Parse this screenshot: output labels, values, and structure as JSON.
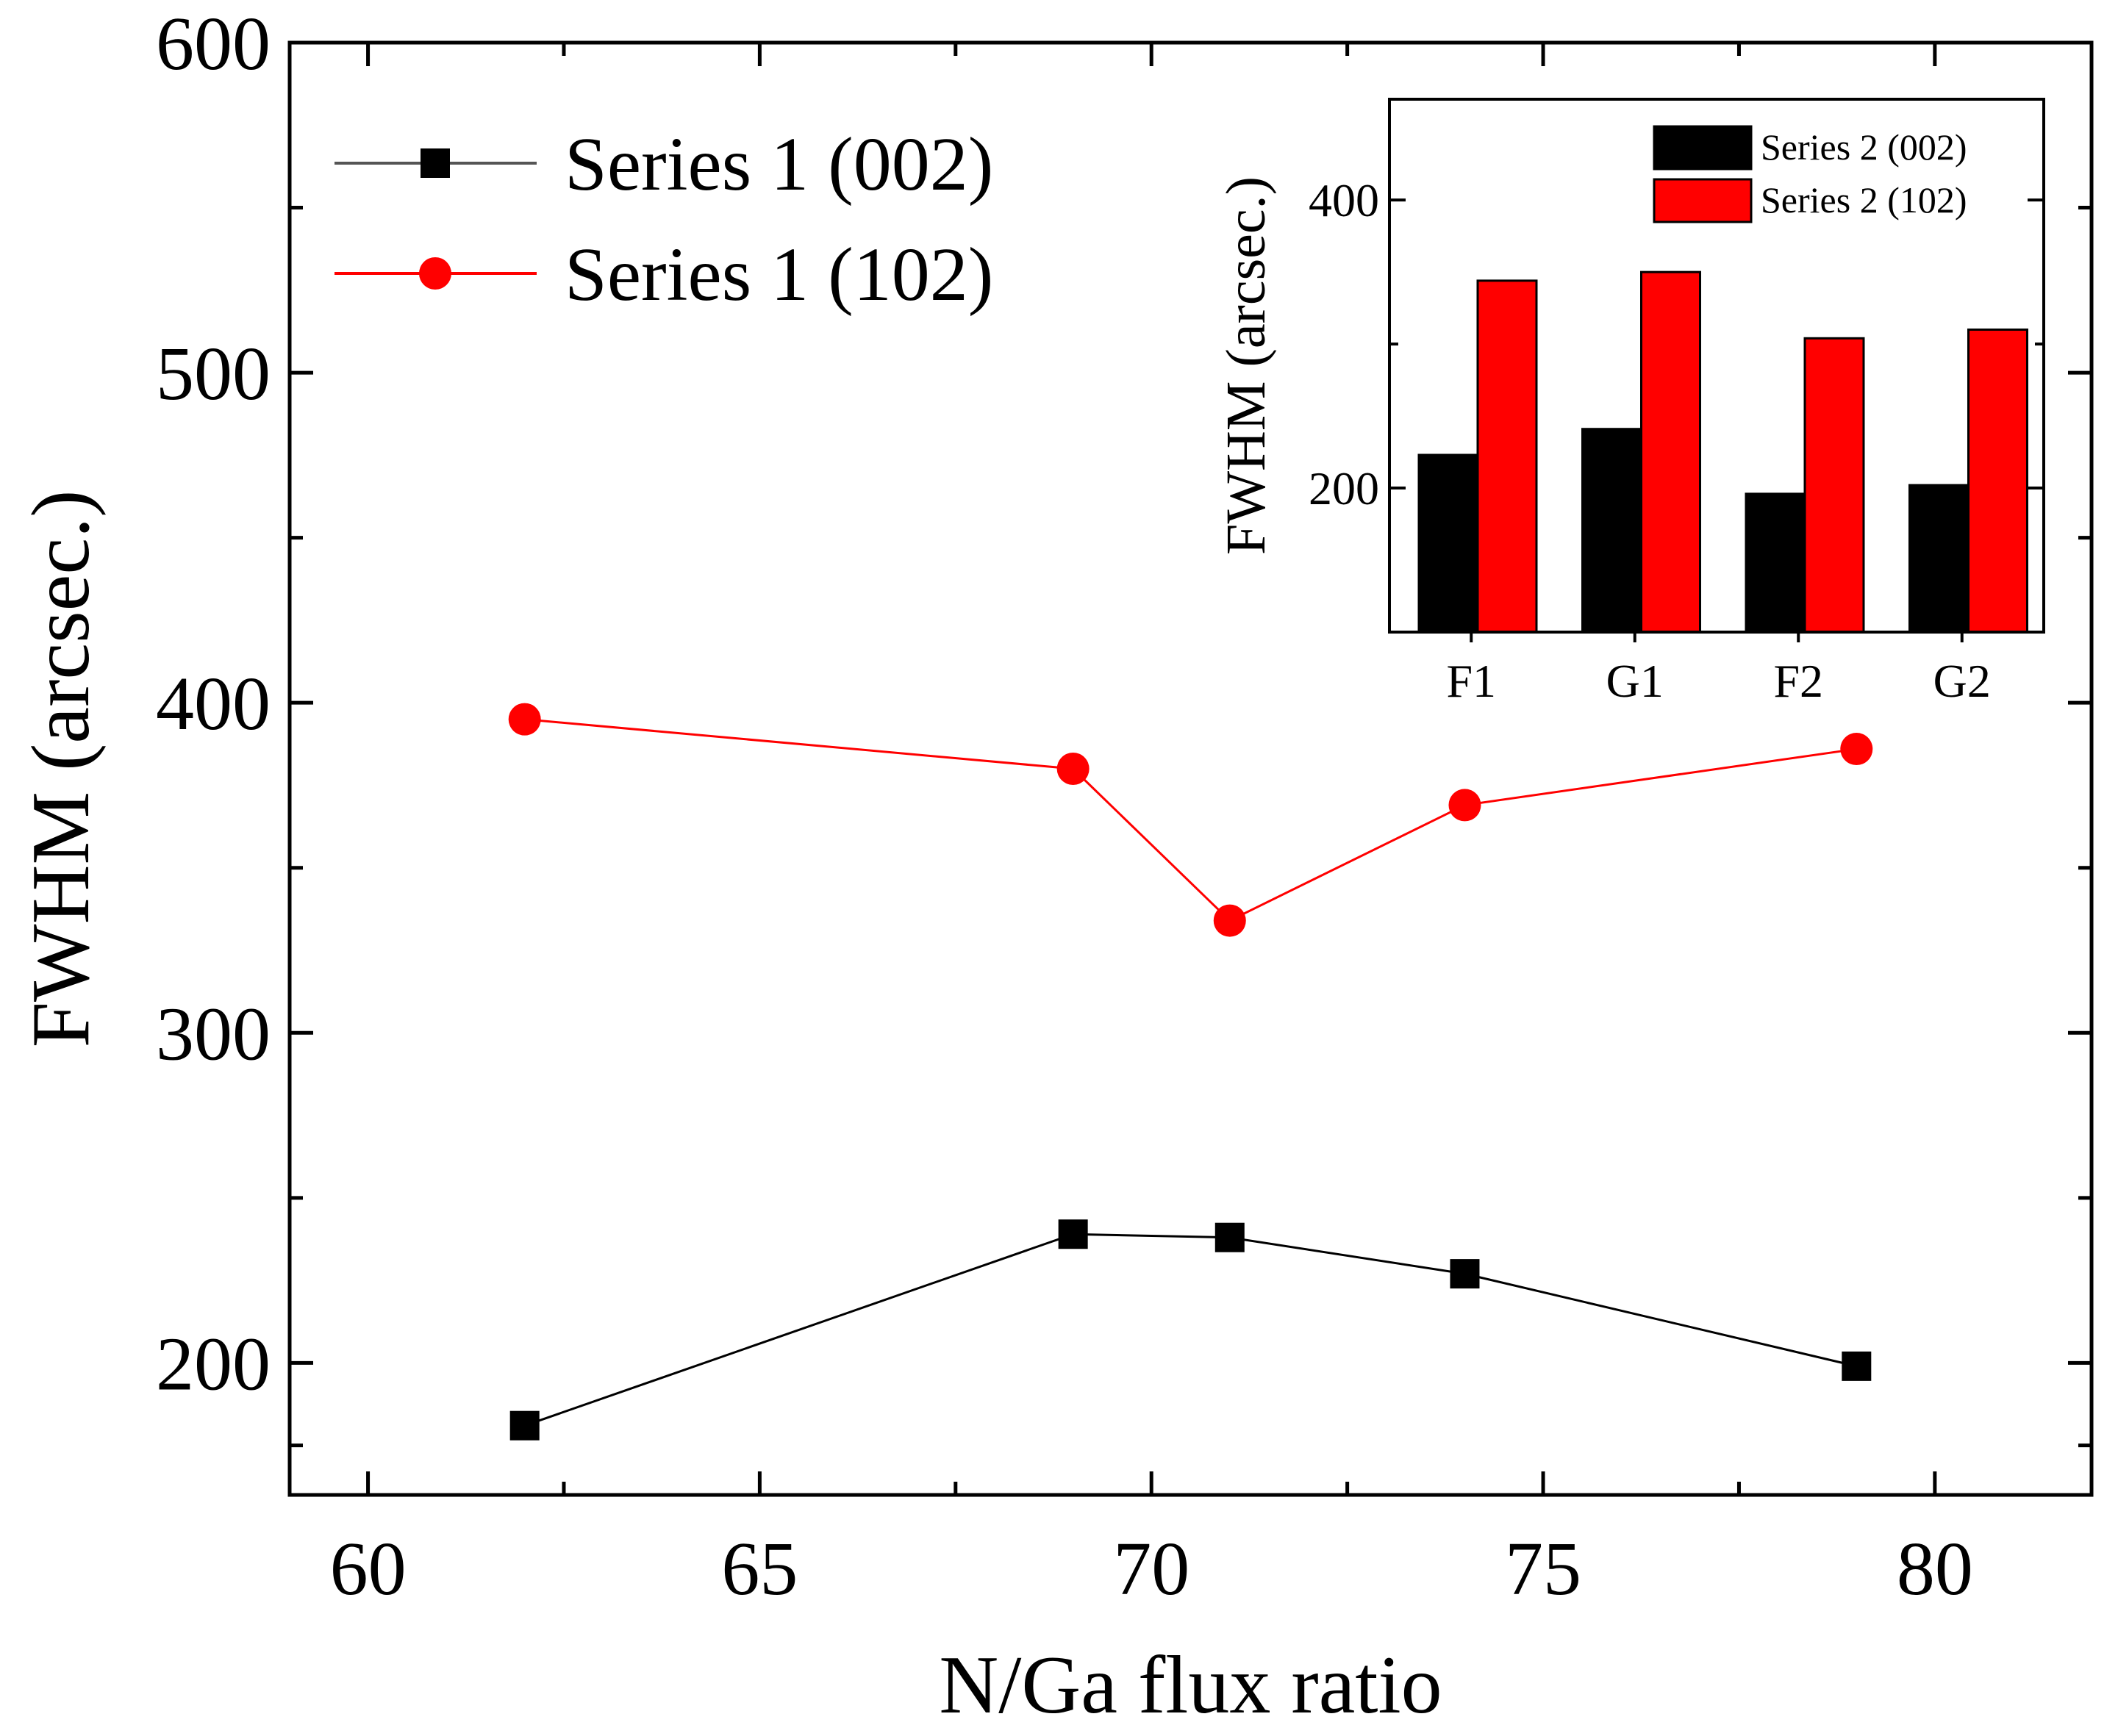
{
  "chart_data": [
    {
      "type": "line",
      "title": "",
      "xlabel": "N/Ga flux ratio",
      "ylabel": "FWHM (arcsec.)",
      "xlim": [
        59,
        82
      ],
      "ylim": [
        160,
        600
      ],
      "xticks": [
        60,
        65,
        70,
        75,
        80
      ],
      "yticks": [
        200,
        300,
        400,
        500,
        600
      ],
      "grid": false,
      "legend": "top-left",
      "x": [
        62,
        69,
        71,
        74,
        79
      ],
      "series": [
        {
          "name": "Series 1 (002)",
          "marker": "square",
          "color": "#000000",
          "values": [
            181,
            239,
            238,
            227,
            199
          ]
        },
        {
          "name": "Series 1 (102)",
          "marker": "circle",
          "color": "#ff0000",
          "values": [
            395,
            380,
            334,
            369,
            386
          ]
        }
      ]
    },
    {
      "type": "bar",
      "title": "",
      "xlabel": "",
      "ylabel": "FWHM (arcsec.)",
      "ylim": [
        100,
        470
      ],
      "yticks": [
        200,
        400
      ],
      "grid": false,
      "legend": "top-right",
      "categories": [
        "F1",
        "G1",
        "F2",
        "G2"
      ],
      "series": [
        {
          "name": "Series 2 (002)",
          "color": "#000000",
          "values": [
            223,
            241,
            196,
            202
          ]
        },
        {
          "name": "Series 2 (102)",
          "color": "#ff0000",
          "values": [
            344,
            350,
            304,
            310
          ]
        }
      ]
    }
  ]
}
